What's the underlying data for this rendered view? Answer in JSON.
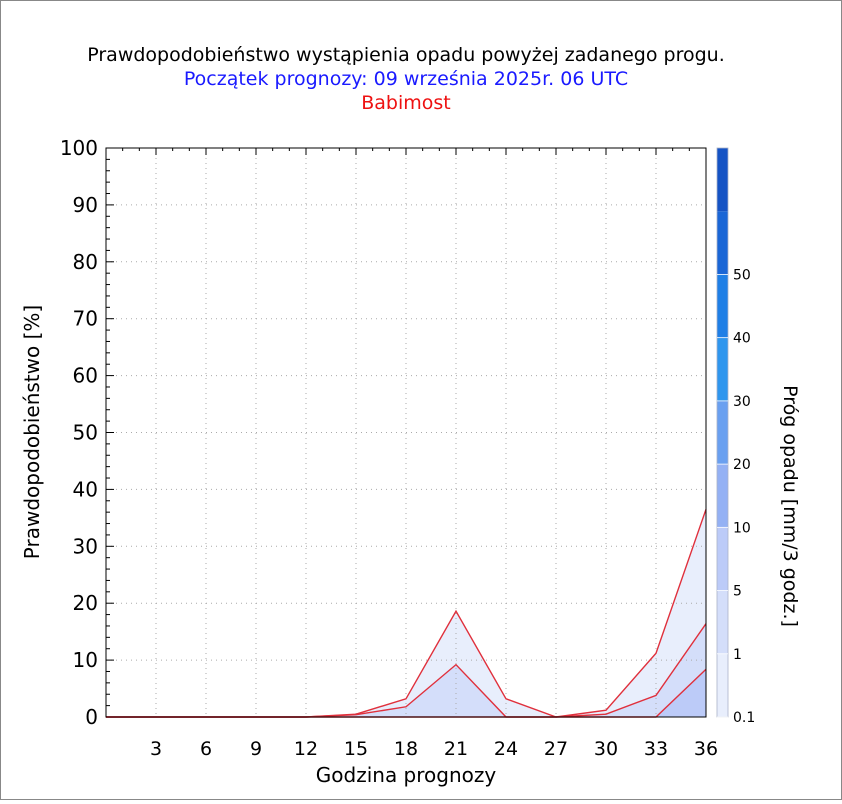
{
  "title": "Prawdopodobieństwo wystąpienia opadu powyżej zadanego progu.",
  "subtitle": "Początek prognozy: 09 września 2025r. 06 UTC",
  "station": "Babimost",
  "colors": {
    "title": "#000000",
    "subtitle": "#1a1aff",
    "station": "#ee1111",
    "series_line": "#e0303c",
    "grid": "#aaaaaa"
  },
  "chart_data": {
    "type": "area",
    "x": [
      0,
      3,
      6,
      9,
      12,
      15,
      18,
      21,
      24,
      27,
      30,
      33,
      36
    ],
    "xticks": [
      "3",
      "6",
      "9",
      "12",
      "15",
      "18",
      "21",
      "24",
      "27",
      "30",
      "33",
      "36"
    ],
    "yticks": [
      "0",
      "10",
      "20",
      "30",
      "40",
      "50",
      "60",
      "70",
      "80",
      "90",
      "100"
    ],
    "xlabel": "Godzina prognozy",
    "ylabel": "Prawdopodobieństwo [%]",
    "xlim": [
      0,
      36
    ],
    "ylim": [
      0,
      100
    ],
    "grid": true,
    "series": [
      {
        "threshold": 0.1,
        "values": [
          0,
          0,
          0,
          0,
          0,
          0.5,
          3.2,
          18.6,
          3.2,
          0,
          1.2,
          11.2,
          36.5
        ]
      },
      {
        "threshold": 1,
        "values": [
          0,
          0,
          0,
          0,
          0,
          0.4,
          1.8,
          9.2,
          0,
          0,
          0.5,
          3.8,
          16.4
        ]
      },
      {
        "threshold": 5,
        "values": [
          0,
          0,
          0,
          0,
          0,
          0,
          0,
          0,
          0,
          0,
          0,
          0,
          8.4
        ]
      }
    ],
    "colorbar": {
      "label": "Próg opadu [mm/3 godz.]",
      "levels": [
        0.1,
        1,
        5,
        10,
        20,
        30,
        40,
        50
      ],
      "level_labels": [
        "0.1",
        "1",
        "5",
        "10",
        "20",
        "30",
        "40",
        "50"
      ],
      "colors": [
        "#e8eefc",
        "#d4defa",
        "#bccbf8",
        "#94b1f4",
        "#6aa0f0",
        "#2f96ee",
        "#1f7fe6",
        "#1a66d6",
        "#1553c4"
      ]
    }
  }
}
